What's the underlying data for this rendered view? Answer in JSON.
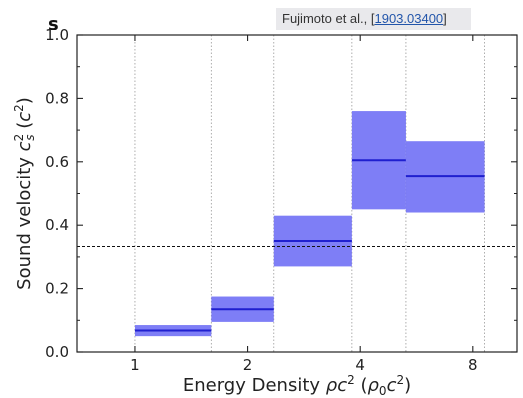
{
  "header": {
    "cut_heading": "s",
    "citation_prefix": "Fujimoto et al., [",
    "citation_link": "1903.03400",
    "citation_suffix": "]"
  },
  "chart_data": {
    "type": "area",
    "x_scale": "log2",
    "xlabel": "Energy Density ρc² (ρ₀c²)",
    "ylabel": "Sound velocity c_s² (c²)",
    "xlim": [
      0.7,
      10.5
    ],
    "ylim": [
      0.0,
      1.0
    ],
    "x_ticks": [
      1,
      2,
      4,
      8
    ],
    "x_tick_labels": [
      "1",
      "2",
      "4",
      "8"
    ],
    "y_ticks": [
      0.0,
      0.2,
      0.4,
      0.6,
      0.8,
      1.0
    ],
    "y_tick_labels": [
      "0.0",
      "0.2",
      "0.4",
      "0.6",
      "0.8",
      "1.0"
    ],
    "reference_line": {
      "y": 0.333,
      "style": "dashed"
    },
    "bins": [
      {
        "x_range": [
          1.0,
          1.6
        ],
        "value": 0.068,
        "low": 0.05,
        "high": 0.085
      },
      {
        "x_range": [
          1.6,
          2.35
        ],
        "value": 0.135,
        "low": 0.095,
        "high": 0.175
      },
      {
        "x_range": [
          2.35,
          3.8
        ],
        "value": 0.35,
        "low": 0.27,
        "high": 0.43
      },
      {
        "x_range": [
          3.8,
          5.3
        ],
        "value": 0.605,
        "low": 0.45,
        "high": 0.76
      },
      {
        "x_range": [
          5.3,
          8.6
        ],
        "value": 0.555,
        "low": 0.44,
        "high": 0.665
      }
    ],
    "grid": "vertical dotted lines at bin edges",
    "colors": {
      "band": "#7777f5",
      "median": "#1f1fcf",
      "reference": "#111111"
    }
  }
}
